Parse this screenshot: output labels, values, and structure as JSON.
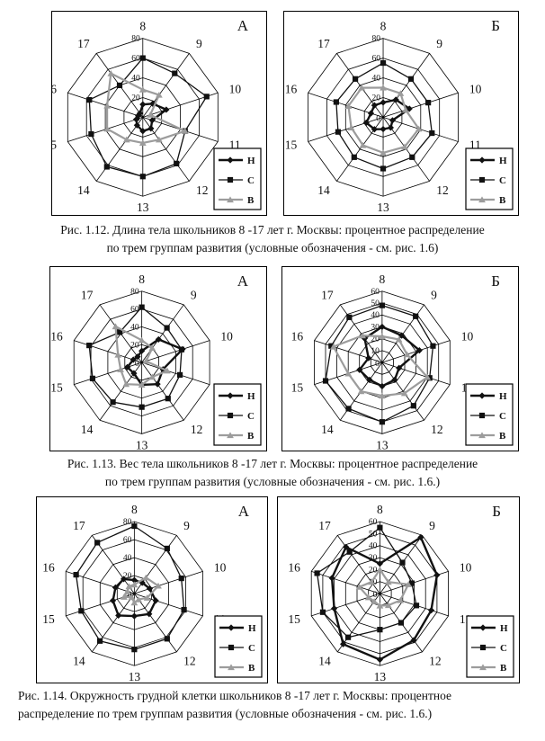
{
  "page": {
    "background": "#ffffff"
  },
  "palette": {
    "series_black": "#111111",
    "series_gray": "#9c9c9c",
    "grid": "#000000",
    "frame": "#000000"
  },
  "legend": {
    "items": [
      {
        "label": "Н",
        "marker": "diamond",
        "color": "#111111",
        "line_width": 2.4
      },
      {
        "label": "С",
        "marker": "square",
        "color": "#111111",
        "line_width": 1.3
      },
      {
        "label": "В",
        "marker": "triangle",
        "color": "#9c9c9c",
        "line_width": 2.2
      }
    ]
  },
  "figures": [
    {
      "id": "1.12",
      "caption": {
        "line1": "Рис. 1.12. Длина тела  школьников  8 -17 лет г. Москвы: процентное распределение",
        "line2": "по трем группам развития (условные обозначения - см. рис. 1.6)"
      }
    },
    {
      "id": "1.13",
      "caption": {
        "line1": "Рис. 1.13. Вес тела школьников  8 -17 лет г. Москвы: процентное распределение",
        "line2": "по трем группам развития (условные обозначения - см. рис. 1.6.)"
      }
    },
    {
      "id": "1.14",
      "caption": {
        "line1": "Рис. 1.14. Окружность грудной клетки  школьников  8 -17 лет г. Москвы:  процентное",
        "line2": "распределение  по трем группам развития (условные обозначения - см. рис. 1.6.)"
      }
    }
  ],
  "chart_data": [
    {
      "type": "radar",
      "figure": "1.12",
      "panel": "А",
      "categories": [
        "8",
        "9",
        "10",
        "11",
        "12",
        "13",
        "14",
        "15",
        "16",
        "17"
      ],
      "rmax": 80,
      "ticks": [
        0,
        20,
        40,
        60,
        80
      ],
      "grid": true,
      "legend_position": "bottom-right",
      "series": [
        {
          "name": "Н",
          "values": [
            13,
            17,
            25,
            10,
            14,
            14,
            10,
            7,
            5,
            5
          ]
        },
        {
          "name": "С",
          "values": [
            60,
            55,
            68,
            45,
            58,
            60,
            62,
            55,
            57,
            40
          ]
        },
        {
          "name": "В",
          "values": [
            28,
            28,
            8,
            45,
            28,
            26,
            28,
            38,
            38,
            55
          ]
        }
      ]
    },
    {
      "type": "radar",
      "figure": "1.12",
      "panel": "Б",
      "categories": [
        "8",
        "9",
        "10",
        "11",
        "12",
        "13",
        "14",
        "15",
        "16",
        "17"
      ],
      "rmax": 80,
      "ticks": [
        0,
        20,
        40,
        60,
        80
      ],
      "grid": true,
      "legend_position": "bottom-right",
      "series": [
        {
          "name": "Н",
          "values": [
            15,
            22,
            28,
            10,
            13,
            12,
            15,
            18,
            13,
            15
          ]
        },
        {
          "name": "С",
          "values": [
            55,
            48,
            48,
            52,
            50,
            52,
            50,
            48,
            50,
            48
          ]
        },
        {
          "name": "В",
          "values": [
            30,
            30,
            24,
            38,
            37,
            36,
            35,
            34,
            37,
            37
          ]
        }
      ]
    },
    {
      "type": "radar",
      "figure": "1.13",
      "panel": "А",
      "categories": [
        "8",
        "9",
        "10",
        "11",
        "12",
        "13",
        "14",
        "15",
        "16",
        "17"
      ],
      "rmax": 80,
      "ticks": [
        0,
        20,
        40,
        60,
        80
      ],
      "grid": true,
      "legend_position": "bottom-right",
      "series": [
        {
          "name": "Н",
          "values": [
            13,
            32,
            48,
            25,
            30,
            25,
            15,
            17,
            10,
            8
          ]
        },
        {
          "name": "С",
          "values": [
            62,
            48,
            47,
            45,
            50,
            50,
            55,
            58,
            62,
            42
          ]
        },
        {
          "name": "В",
          "values": [
            25,
            20,
            5,
            30,
            20,
            25,
            30,
            25,
            28,
            50
          ]
        }
      ]
    },
    {
      "type": "radar",
      "figure": "1.13",
      "panel": "Б",
      "categories": [
        "8",
        "9",
        "10",
        "11",
        "12",
        "13",
        "14",
        "15",
        "16",
        "17"
      ],
      "rmax": 60,
      "ticks": [
        0,
        10,
        20,
        30,
        40,
        50,
        60
      ],
      "grid": true,
      "legend_position": "bottom-right",
      "series": [
        {
          "name": "Н",
          "values": [
            30,
            28,
            33,
            15,
            18,
            20,
            18,
            20,
            12,
            25
          ]
        },
        {
          "name": "С",
          "values": [
            48,
            48,
            45,
            42,
            45,
            50,
            48,
            50,
            45,
            47
          ]
        },
        {
          "name": "В",
          "values": [
            22,
            24,
            22,
            40,
            32,
            28,
            30,
            30,
            43,
            28
          ]
        }
      ]
    },
    {
      "type": "radar",
      "figure": "1.14",
      "panel": "А",
      "categories": [
        "8",
        "9",
        "10",
        "11",
        "12",
        "13",
        "14",
        "15",
        "16",
        "17"
      ],
      "rmax": 80,
      "ticks": [
        0,
        20,
        40,
        60,
        80
      ],
      "grid": true,
      "legend_position": "bottom-right",
      "series": [
        {
          "name": "Н",
          "values": [
            15,
            15,
            18,
            25,
            28,
            25,
            30,
            25,
            22,
            20
          ]
        },
        {
          "name": "С",
          "values": [
            75,
            62,
            55,
            58,
            62,
            62,
            65,
            62,
            68,
            70
          ]
        },
        {
          "name": "В",
          "values": [
            10,
            22,
            28,
            15,
            8,
            10,
            5,
            12,
            8,
            10
          ]
        }
      ]
    },
    {
      "type": "radar",
      "figure": "1.14",
      "panel": "Б",
      "categories": [
        "8",
        "9",
        "10",
        "11",
        "12",
        "13",
        "14",
        "15",
        "16",
        "17"
      ],
      "rmax": 60,
      "ticks": [
        0,
        10,
        20,
        30,
        40,
        50,
        60
      ],
      "grid": true,
      "legend_position": "bottom-right",
      "series": [
        {
          "name": "Н",
          "values": [
            25,
            58,
            50,
            45,
            48,
            55,
            52,
            40,
            42,
            48
          ]
        },
        {
          "name": "С",
          "values": [
            55,
            32,
            28,
            32,
            30,
            30,
            45,
            50,
            55,
            43
          ]
        },
        {
          "name": "В",
          "values": [
            20,
            12,
            25,
            18,
            12,
            10,
            8,
            10,
            18,
            12
          ]
        }
      ]
    }
  ]
}
